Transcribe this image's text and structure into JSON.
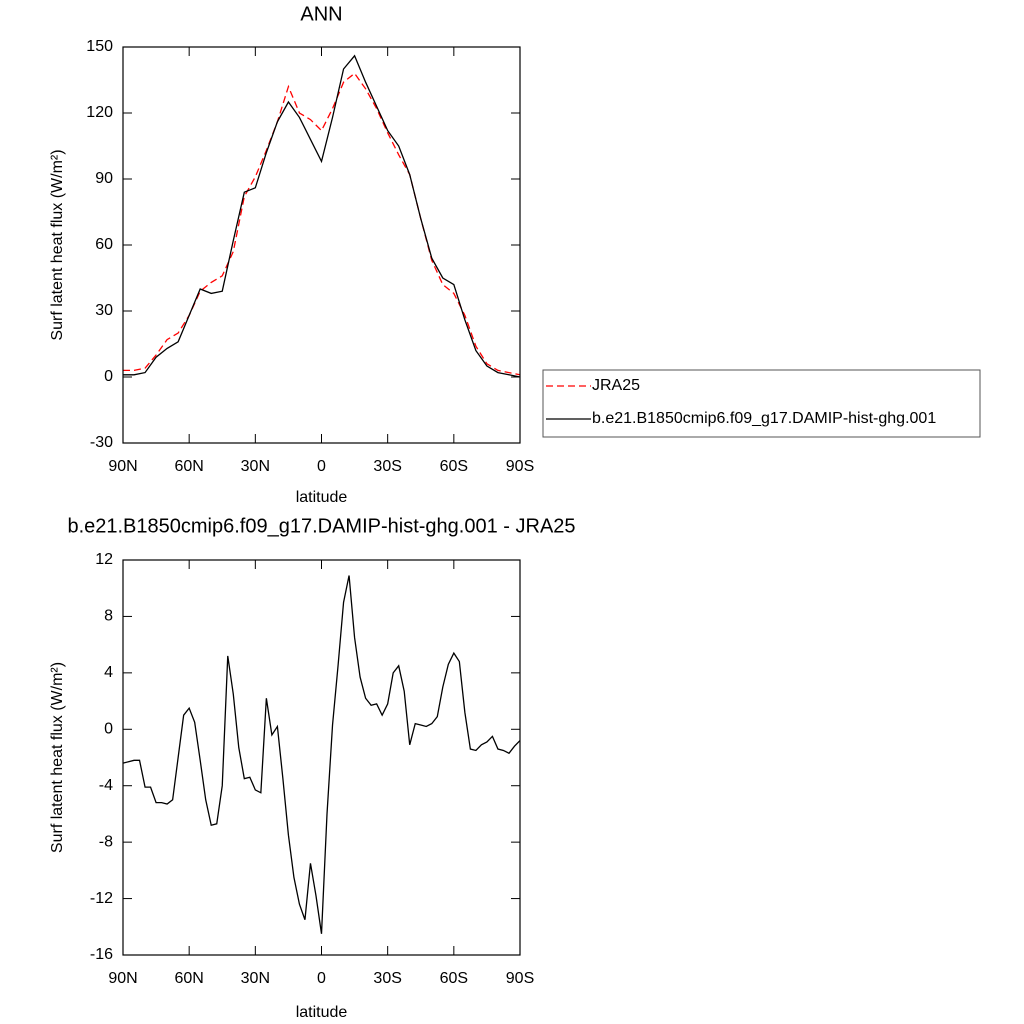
{
  "chart_data": [
    {
      "type": "line",
      "title": "ANN",
      "xlabel": "latitude",
      "ylabel": "Surf latent heat flux (W/m²)",
      "x": [
        90,
        85,
        80,
        75,
        70,
        65,
        60,
        55,
        50,
        45,
        40,
        35,
        30,
        25,
        20,
        15,
        10,
        5,
        0,
        -5,
        -10,
        -15,
        -20,
        -25,
        -30,
        -35,
        -40,
        -45,
        -50,
        -55,
        -60,
        -65,
        -70,
        -75,
        -80,
        -85,
        -90
      ],
      "xlim": [
        90,
        -90
      ],
      "xticks": [
        {
          "value": 90,
          "label": "90N"
        },
        {
          "value": 60,
          "label": "60N"
        },
        {
          "value": 30,
          "label": "30N"
        },
        0,
        {
          "value": -30,
          "label": "30S"
        },
        {
          "value": -60,
          "label": "60S"
        },
        {
          "value": -90,
          "label": "90S"
        }
      ],
      "ylim": [
        -30,
        150
      ],
      "yticks": [
        -30,
        0,
        30,
        60,
        90,
        120,
        150
      ],
      "legend": "right",
      "series": [
        {
          "name": "JRA25",
          "color": "#ff0000",
          "linestyle": "dashed",
          "values": [
            3,
            3,
            4,
            10,
            17,
            20,
            28,
            39,
            43,
            46,
            57,
            82,
            91,
            103,
            116,
            132,
            120,
            117,
            112,
            122,
            134,
            138,
            131,
            122,
            111,
            101,
            92,
            72,
            53,
            42,
            38,
            28,
            14,
            6,
            3,
            2,
            1
          ]
        },
        {
          "name": "b.e21.B1850cmip6.f09_g17.DAMIP-hist-ghg.001",
          "color": "#000000",
          "linestyle": "solid",
          "values": [
            1,
            1,
            2,
            9,
            13,
            16,
            28,
            40,
            38,
            39,
            62,
            84,
            86,
            102,
            116,
            125,
            118,
            108,
            98,
            118,
            140,
            146,
            134,
            123,
            112,
            105,
            92,
            72,
            54,
            45,
            42,
            26,
            12,
            5,
            2,
            1,
            0
          ]
        }
      ]
    },
    {
      "type": "line",
      "title": "b.e21.B1850cmip6.f09_g17.DAMIP-hist-ghg.001 - JRA25",
      "xlabel": "latitude",
      "ylabel": "Surf latent heat flux (W/m²)",
      "x": [
        90,
        87.5,
        85,
        82.5,
        80,
        77.5,
        75,
        72.5,
        70,
        67.5,
        65,
        62.5,
        60,
        57.5,
        55,
        52.5,
        50,
        47.5,
        45,
        42.5,
        40,
        37.5,
        35,
        32.5,
        30,
        27.5,
        25,
        22.5,
        20,
        17.5,
        15,
        12.5,
        10,
        7.5,
        5,
        2.5,
        0,
        -2.5,
        -5,
        -7.5,
        -10,
        -12.5,
        -15,
        -17.5,
        -20,
        -22.5,
        -25,
        -27.5,
        -30,
        -32.5,
        -35,
        -37.5,
        -40,
        -42.5,
        -45,
        -47.5,
        -50,
        -52.5,
        -55,
        -57.5,
        -60,
        -62.5,
        -65,
        -67.5,
        -70,
        -72.5,
        -75,
        -77.5,
        -80,
        -82.5,
        -85,
        -87.5,
        -90
      ],
      "xlim": [
        90,
        -90
      ],
      "xticks": [
        {
          "value": 90,
          "label": "90N"
        },
        {
          "value": 60,
          "label": "60N"
        },
        {
          "value": 30,
          "label": "30N"
        },
        0,
        {
          "value": -30,
          "label": "30S"
        },
        {
          "value": -60,
          "label": "60S"
        },
        {
          "value": -90,
          "label": "90S"
        }
      ],
      "ylim": [
        -16,
        12
      ],
      "yticks": [
        -16,
        -12,
        -8,
        -4,
        0,
        4,
        8,
        12
      ],
      "series": [
        {
          "color": "#000000",
          "linestyle": "solid",
          "values": [
            -2.4,
            -2.3,
            -2.2,
            -2.2,
            -4.1,
            -4.1,
            -5.2,
            -5.2,
            -5.3,
            -5.0,
            -2.0,
            1.0,
            1.5,
            0.5,
            -2.2,
            -5.0,
            -6.8,
            -6.7,
            -4.0,
            5.2,
            2.5,
            -1.3,
            -3.5,
            -3.4,
            -4.3,
            -4.5,
            2.2,
            -0.4,
            0.2,
            -3.5,
            -7.5,
            -10.5,
            -12.4,
            -13.5,
            -9.5,
            -11.8,
            -14.5,
            -6.0,
            0.3,
            4.5,
            9.0,
            10.9,
            6.5,
            3.7,
            2.2,
            1.7,
            1.8,
            1.0,
            1.8,
            4.0,
            4.5,
            2.7,
            -1.1,
            0.4,
            0.3,
            0.2,
            0.4,
            0.9,
            3.0,
            4.6,
            5.4,
            4.8,
            1.2,
            -1.4,
            -1.5,
            -1.1,
            -0.9,
            -0.5,
            -1.4,
            -1.5,
            -1.7,
            -1.2,
            -0.8
          ]
        }
      ]
    }
  ]
}
